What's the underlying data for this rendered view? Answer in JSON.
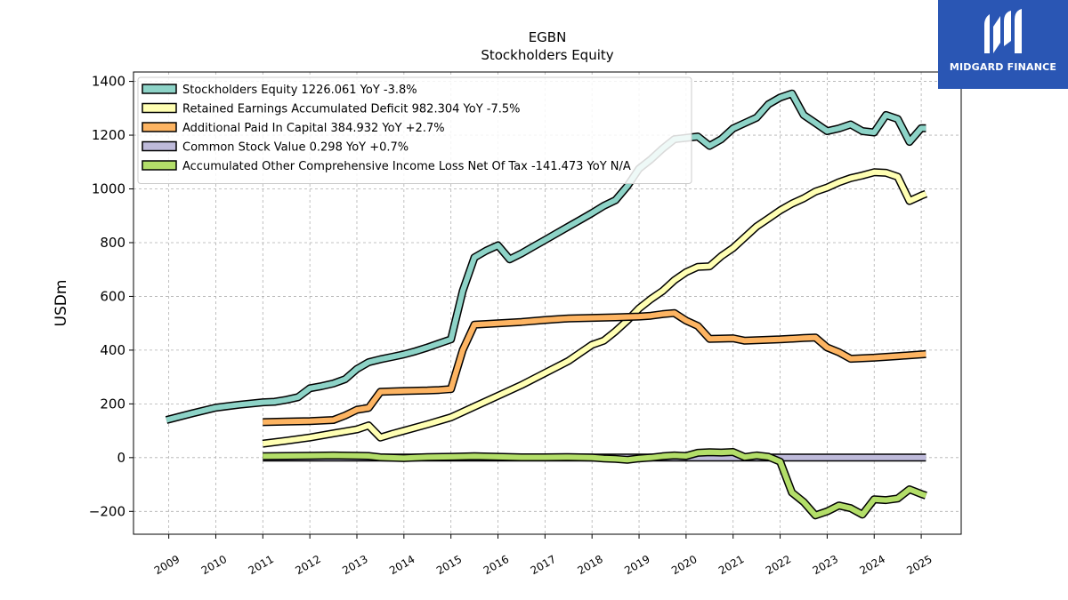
{
  "chart_data": {
    "type": "line",
    "title": "EGBN",
    "subtitle": "Stockholders  Equity",
    "ylabel": "USDm",
    "xlabel": "",
    "ylim": [
      -285,
      1435
    ],
    "xlim": [
      2008.25,
      2025.85
    ],
    "yticks": [
      -200,
      0,
      200,
      400,
      600,
      800,
      1000,
      1200,
      1400
    ],
    "xticks": [
      "2009",
      "2010",
      "2011",
      "2012",
      "2013",
      "2014",
      "2015",
      "2016",
      "2017",
      "2018",
      "2019",
      "2020",
      "2021",
      "2022",
      "2023",
      "2024",
      "2025"
    ],
    "grid": true,
    "legend_position": "top-left",
    "series": [
      {
        "name": "Stockholders Equity  1226.061 YoY -3.8%",
        "color": "#8dd3c7",
        "points": [
          [
            2008.95,
            140
          ],
          [
            2009.5,
            165
          ],
          [
            2010.0,
            186
          ],
          [
            2010.5,
            197
          ],
          [
            2011.0,
            206
          ],
          [
            2011.25,
            208
          ],
          [
            2011.5,
            215
          ],
          [
            2011.75,
            225
          ],
          [
            2012.0,
            258
          ],
          [
            2012.25,
            266
          ],
          [
            2012.5,
            276
          ],
          [
            2012.75,
            292
          ],
          [
            2013.0,
            330
          ],
          [
            2013.25,
            355
          ],
          [
            2013.5,
            366
          ],
          [
            2013.75,
            375
          ],
          [
            2014.0,
            384
          ],
          [
            2014.25,
            396
          ],
          [
            2014.5,
            410
          ],
          [
            2014.75,
            425
          ],
          [
            2015.0,
            440
          ],
          [
            2015.25,
            620
          ],
          [
            2015.5,
            745
          ],
          [
            2015.75,
            770
          ],
          [
            2016.0,
            790
          ],
          [
            2016.25,
            738
          ],
          [
            2016.5,
            760
          ],
          [
            2016.75,
            785
          ],
          [
            2017.0,
            810
          ],
          [
            2017.25,
            835
          ],
          [
            2017.5,
            860
          ],
          [
            2017.75,
            885
          ],
          [
            2018.0,
            910
          ],
          [
            2018.25,
            937
          ],
          [
            2018.5,
            958
          ],
          [
            2018.75,
            1010
          ],
          [
            2019.0,
            1075
          ],
          [
            2019.25,
            1110
          ],
          [
            2019.5,
            1150
          ],
          [
            2019.75,
            1185
          ],
          [
            2020.0,
            1190
          ],
          [
            2020.25,
            1195
          ],
          [
            2020.5,
            1160
          ],
          [
            2020.75,
            1185
          ],
          [
            2021.0,
            1225
          ],
          [
            2021.25,
            1245
          ],
          [
            2021.5,
            1265
          ],
          [
            2021.75,
            1315
          ],
          [
            2022.0,
            1340
          ],
          [
            2022.25,
            1355
          ],
          [
            2022.5,
            1275
          ],
          [
            2022.75,
            1245
          ],
          [
            2023.0,
            1215
          ],
          [
            2023.25,
            1225
          ],
          [
            2023.5,
            1240
          ],
          [
            2023.75,
            1215
          ],
          [
            2024.0,
            1210
          ],
          [
            2024.25,
            1275
          ],
          [
            2024.5,
            1260
          ],
          [
            2024.75,
            1175
          ],
          [
            2025.0,
            1226
          ],
          [
            2025.1,
            1226
          ]
        ]
      },
      {
        "name": "Retained Earnings Accumulated Deficit  982.304 YoY -7.5%",
        "color": "#ffffb3",
        "points": [
          [
            2011.0,
            52
          ],
          [
            2011.5,
            63
          ],
          [
            2012.0,
            75
          ],
          [
            2012.5,
            90
          ],
          [
            2013.0,
            105
          ],
          [
            2013.25,
            120
          ],
          [
            2013.5,
            75
          ],
          [
            2013.75,
            88
          ],
          [
            2014.0,
            100
          ],
          [
            2014.5,
            124
          ],
          [
            2015.0,
            150
          ],
          [
            2015.5,
            190
          ],
          [
            2016.0,
            230
          ],
          [
            2016.5,
            270
          ],
          [
            2017.0,
            315
          ],
          [
            2017.5,
            360
          ],
          [
            2017.75,
            390
          ],
          [
            2018.0,
            420
          ],
          [
            2018.25,
            435
          ],
          [
            2018.5,
            470
          ],
          [
            2018.75,
            510
          ],
          [
            2019.0,
            555
          ],
          [
            2019.25,
            590
          ],
          [
            2019.5,
            620
          ],
          [
            2019.75,
            660
          ],
          [
            2020.0,
            690
          ],
          [
            2020.25,
            710
          ],
          [
            2020.5,
            712
          ],
          [
            2020.75,
            750
          ],
          [
            2021.0,
            780
          ],
          [
            2021.25,
            820
          ],
          [
            2021.5,
            860
          ],
          [
            2021.75,
            890
          ],
          [
            2022.0,
            920
          ],
          [
            2022.25,
            945
          ],
          [
            2022.5,
            965
          ],
          [
            2022.75,
            990
          ],
          [
            2023.0,
            1005
          ],
          [
            2023.25,
            1025
          ],
          [
            2023.5,
            1040
          ],
          [
            2023.75,
            1050
          ],
          [
            2024.0,
            1062
          ],
          [
            2024.25,
            1060
          ],
          [
            2024.5,
            1045
          ],
          [
            2024.75,
            955
          ],
          [
            2025.0,
            975
          ],
          [
            2025.1,
            982
          ]
        ]
      },
      {
        "name": "Additional Paid In Capital  384.932 YoY +2.7%",
        "color": "#fdb462",
        "points": [
          [
            2011.0,
            132
          ],
          [
            2011.5,
            134
          ],
          [
            2012.0,
            136
          ],
          [
            2012.5,
            140
          ],
          [
            2012.75,
            157
          ],
          [
            2013.0,
            178
          ],
          [
            2013.25,
            185
          ],
          [
            2013.5,
            245
          ],
          [
            2014.0,
            248
          ],
          [
            2014.5,
            250
          ],
          [
            2014.75,
            252
          ],
          [
            2015.0,
            255
          ],
          [
            2015.25,
            400
          ],
          [
            2015.5,
            495
          ],
          [
            2016.0,
            500
          ],
          [
            2016.5,
            505
          ],
          [
            2017.0,
            512
          ],
          [
            2017.5,
            518
          ],
          [
            2018.0,
            520
          ],
          [
            2018.5,
            522
          ],
          [
            2019.0,
            525
          ],
          [
            2019.25,
            528
          ],
          [
            2019.5,
            534
          ],
          [
            2019.75,
            538
          ],
          [
            2020.0,
            510
          ],
          [
            2020.25,
            490
          ],
          [
            2020.5,
            442
          ],
          [
            2021.0,
            444
          ],
          [
            2021.25,
            435
          ],
          [
            2021.5,
            437
          ],
          [
            2022.0,
            440
          ],
          [
            2022.5,
            445
          ],
          [
            2022.75,
            447
          ],
          [
            2023.0,
            410
          ],
          [
            2023.25,
            392
          ],
          [
            2023.5,
            368
          ],
          [
            2024.0,
            372
          ],
          [
            2024.5,
            378
          ],
          [
            2025.0,
            384
          ],
          [
            2025.1,
            385
          ]
        ]
      },
      {
        "name": "Common Stock Value  0.298 YoY +0.7%",
        "color": "#bebada",
        "points": [
          [
            2011.0,
            0
          ],
          [
            2025.1,
            0
          ]
        ]
      },
      {
        "name": "Accumulated Other Comprehensive Income Loss Net Of Tax  -141.473 YoY N/A",
        "color": "#b3de69",
        "points": [
          [
            2011.0,
            5
          ],
          [
            2011.5,
            6
          ],
          [
            2012.0,
            7
          ],
          [
            2012.5,
            8
          ],
          [
            2013.0,
            7
          ],
          [
            2013.25,
            6
          ],
          [
            2013.5,
            1
          ],
          [
            2014.0,
            -2
          ],
          [
            2014.25,
            0
          ],
          [
            2014.5,
            2
          ],
          [
            2015.0,
            3
          ],
          [
            2015.5,
            5
          ],
          [
            2016.0,
            3
          ],
          [
            2016.5,
            1
          ],
          [
            2017.0,
            1
          ],
          [
            2017.5,
            2
          ],
          [
            2018.0,
            0
          ],
          [
            2018.25,
            -3
          ],
          [
            2018.5,
            -5
          ],
          [
            2018.75,
            -8
          ],
          [
            2019.0,
            -3
          ],
          [
            2019.25,
            0
          ],
          [
            2019.5,
            5
          ],
          [
            2019.75,
            8
          ],
          [
            2020.0,
            6
          ],
          [
            2020.25,
            18
          ],
          [
            2020.5,
            20
          ],
          [
            2020.75,
            19
          ],
          [
            2021.0,
            21
          ],
          [
            2021.25,
            2
          ],
          [
            2021.5,
            8
          ],
          [
            2021.75,
            3
          ],
          [
            2022.0,
            -15
          ],
          [
            2022.25,
            -130
          ],
          [
            2022.5,
            -165
          ],
          [
            2022.75,
            -215
          ],
          [
            2023.0,
            -200
          ],
          [
            2023.25,
            -178
          ],
          [
            2023.5,
            -188
          ],
          [
            2023.75,
            -212
          ],
          [
            2024.0,
            -155
          ],
          [
            2024.25,
            -158
          ],
          [
            2024.5,
            -152
          ],
          [
            2024.75,
            -118
          ],
          [
            2025.0,
            -135
          ],
          [
            2025.1,
            -141
          ]
        ]
      }
    ]
  },
  "logo": {
    "text": "MIDGARD FINANCE"
  }
}
